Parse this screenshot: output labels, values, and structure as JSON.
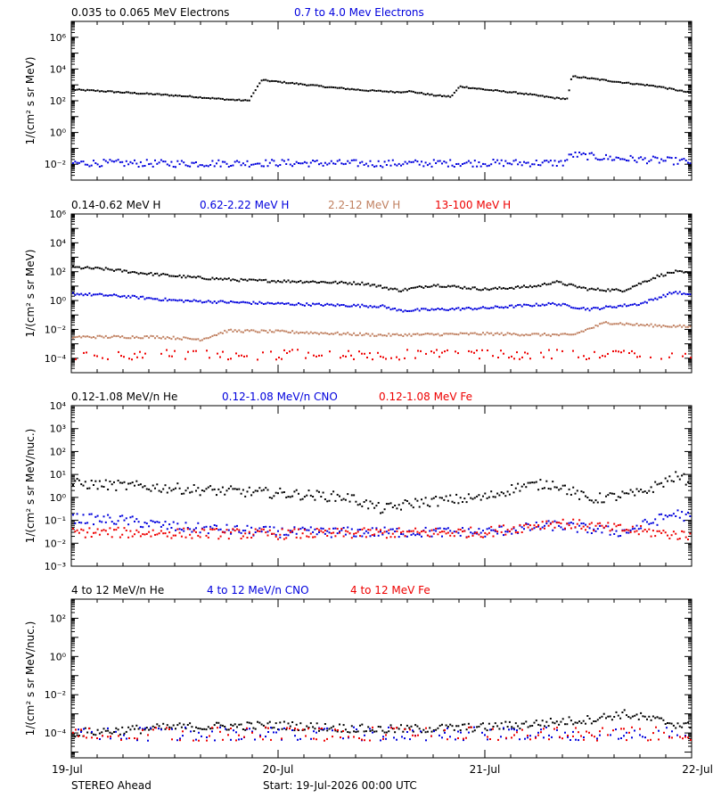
{
  "colors": {
    "black": "#000000",
    "blue": "#0000dd",
    "brown": "#c08060",
    "red": "#ee0000",
    "background": "#ffffff"
  },
  "x_axis": {
    "range": [
      "2026-07-19T00:00",
      "2026-07-22T00:00"
    ],
    "ticks": [
      {
        "date": "2026-07-19T00:00",
        "label": "19-Jul"
      },
      {
        "date": "2026-07-20T00:00",
        "label": "20-Jul"
      },
      {
        "date": "2026-07-21T00:00",
        "label": "21-Jul"
      },
      {
        "date": "2026-07-22T00:00",
        "label": "22-Jul"
      }
    ]
  },
  "footer": {
    "spacecraft": "STEREO Ahead",
    "start": "Start: 19-Jul-2026 00:00 UTC"
  },
  "chart_data": [
    {
      "type": "scatter",
      "title": "",
      "ylabel": "1/(cm² s sr MeV)",
      "yscale": "log",
      "ylim": [
        0.001,
        10000000
      ],
      "yticks": [
        {
          "v": 0.01,
          "label": "10⁻²"
        },
        {
          "v": 1,
          "label": "10⁰"
        },
        {
          "v": 100,
          "label": "10²"
        },
        {
          "v": 10000,
          "label": "10⁴"
        },
        {
          "v": 1000000,
          "label": "10⁶"
        }
      ],
      "series": [
        {
          "name": "0.035 to 0.065 MeV Electrons",
          "color": "#000000",
          "points": [
            [
              "2026-07-19T00:00",
              500
            ],
            [
              "2026-07-19T03:00",
              420
            ],
            [
              "2026-07-19T06:00",
              330
            ],
            [
              "2026-07-19T10:00",
              250
            ],
            [
              "2026-07-19T14:00",
              180
            ],
            [
              "2026-07-19T18:00",
              120
            ],
            [
              "2026-07-19T20:30",
              100
            ],
            [
              "2026-07-19T22:00",
              2000
            ],
            [
              "2026-07-20T02:00",
              1200
            ],
            [
              "2026-07-20T06:00",
              700
            ],
            [
              "2026-07-20T10:00",
              450
            ],
            [
              "2026-07-20T14:00",
              350
            ],
            [
              "2026-07-20T15:00",
              400
            ],
            [
              "2026-07-20T18:00",
              220
            ],
            [
              "2026-07-20T20:00",
              180
            ],
            [
              "2026-07-20T21:00",
              800
            ],
            [
              "2026-07-21T00:00",
              500
            ],
            [
              "2026-07-21T04:00",
              300
            ],
            [
              "2026-07-21T08:00",
              150
            ],
            [
              "2026-07-21T09:30",
              130
            ],
            [
              "2026-07-21T10:00",
              3500
            ],
            [
              "2026-07-21T12:00",
              2600
            ],
            [
              "2026-07-21T16:00",
              1400
            ],
            [
              "2026-07-21T20:00",
              800
            ],
            [
              "2026-07-22T00:00",
              300
            ]
          ]
        },
        {
          "name": "0.7 to 4.0 Mev Electrons",
          "color": "#0000dd",
          "points": [
            [
              "2026-07-19T00:00",
              0.012
            ],
            [
              "2026-07-19T12:00",
              0.011
            ],
            [
              "2026-07-20T00:00",
              0.012
            ],
            [
              "2026-07-20T12:00",
              0.011
            ],
            [
              "2026-07-21T00:00",
              0.012
            ],
            [
              "2026-07-21T09:00",
              0.012
            ],
            [
              "2026-07-21T10:00",
              0.04
            ],
            [
              "2026-07-21T14:00",
              0.025
            ],
            [
              "2026-07-22T00:00",
              0.014
            ]
          ]
        }
      ]
    },
    {
      "type": "scatter",
      "title": "",
      "ylabel": "1/(cm² s sr MeV)",
      "yscale": "log",
      "ylim": [
        1e-05,
        1000000
      ],
      "yticks": [
        {
          "v": 0.0001,
          "label": "10⁻⁴"
        },
        {
          "v": 0.01,
          "label": "10⁻²"
        },
        {
          "v": 1,
          "label": "10⁰"
        },
        {
          "v": 100,
          "label": "10²"
        },
        {
          "v": 10000,
          "label": "10⁴"
        },
        {
          "v": 1000000,
          "label": "10⁶"
        }
      ],
      "series": [
        {
          "name": "0.14-0.62 MeV H",
          "color": "#000000",
          "points": [
            [
              "2026-07-19T00:00",
              200
            ],
            [
              "2026-07-19T04:00",
              150
            ],
            [
              "2026-07-19T08:00",
              80
            ],
            [
              "2026-07-19T14:00",
              40
            ],
            [
              "2026-07-19T20:00",
              25
            ],
            [
              "2026-07-20T04:00",
              20
            ],
            [
              "2026-07-20T10:00",
              15
            ],
            [
              "2026-07-20T14:00",
              5
            ],
            [
              "2026-07-20T18:00",
              12
            ],
            [
              "2026-07-21T00:00",
              6
            ],
            [
              "2026-07-21T06:00",
              10
            ],
            [
              "2026-07-21T08:00",
              20
            ],
            [
              "2026-07-21T12:00",
              6
            ],
            [
              "2026-07-21T16:00",
              5
            ],
            [
              "2026-07-21T20:00",
              50
            ],
            [
              "2026-07-21T22:00",
              100
            ],
            [
              "2026-07-22T00:00",
              70
            ]
          ]
        },
        {
          "name": "0.62-2.22 MeV H",
          "color": "#0000dd",
          "points": [
            [
              "2026-07-19T00:00",
              3
            ],
            [
              "2026-07-19T06:00",
              2
            ],
            [
              "2026-07-19T12:00",
              1
            ],
            [
              "2026-07-20T00:00",
              0.6
            ],
            [
              "2026-07-20T12:00",
              0.4
            ],
            [
              "2026-07-20T14:00",
              0.2
            ],
            [
              "2026-07-21T00:00",
              0.3
            ],
            [
              "2026-07-21T08:00",
              0.6
            ],
            [
              "2026-07-21T12:00",
              0.25
            ],
            [
              "2026-07-21T18:00",
              0.6
            ],
            [
              "2026-07-21T22:00",
              4
            ],
            [
              "2026-07-22T00:00",
              2
            ]
          ]
        },
        {
          "name": "2.2-12 MeV H",
          "color": "#c08060",
          "points": [
            [
              "2026-07-19T00:00",
              0.003
            ],
            [
              "2026-07-19T10:00",
              0.003
            ],
            [
              "2026-07-19T15:00",
              0.002
            ],
            [
              "2026-07-19T18:00",
              0.008
            ],
            [
              "2026-07-20T00:00",
              0.007
            ],
            [
              "2026-07-20T12:00",
              0.004
            ],
            [
              "2026-07-21T00:00",
              0.005
            ],
            [
              "2026-07-21T10:00",
              0.004
            ],
            [
              "2026-07-21T14:00",
              0.03
            ],
            [
              "2026-07-21T18:00",
              0.02
            ],
            [
              "2026-07-22T00:00",
              0.015
            ]
          ]
        },
        {
          "name": "13-100 MeV H",
          "color": "#ee0000",
          "points": [
            [
              "2026-07-19T00:00",
              0.0002
            ],
            [
              "2026-07-20T00:00",
              0.0002
            ],
            [
              "2026-07-21T00:00",
              0.0002
            ],
            [
              "2026-07-22T00:00",
              0.0002
            ]
          ]
        }
      ]
    },
    {
      "type": "scatter",
      "title": "",
      "ylabel": "1/(cm² s sr MeV/nuc.)",
      "yscale": "log",
      "ylim": [
        0.001,
        10000
      ],
      "yticks": [
        {
          "v": 0.001,
          "label": "10⁻³"
        },
        {
          "v": 0.01,
          "label": "10⁻²"
        },
        {
          "v": 0.1,
          "label": "10⁻¹"
        },
        {
          "v": 1,
          "label": "10⁰"
        },
        {
          "v": 10,
          "label": "10¹"
        },
        {
          "v": 100,
          "label": "10²"
        },
        {
          "v": 1000,
          "label": "10³"
        },
        {
          "v": 10000,
          "label": "10⁴"
        }
      ],
      "series": [
        {
          "name": "0.12-1.08 MeV/n He",
          "color": "#000000",
          "points": [
            [
              "2026-07-19T00:00",
              4
            ],
            [
              "2026-07-19T08:00",
              3
            ],
            [
              "2026-07-19T16:00",
              2
            ],
            [
              "2026-07-20T00:00",
              1.5
            ],
            [
              "2026-07-20T08:00",
              1
            ],
            [
              "2026-07-20T12:00",
              0.3
            ],
            [
              "2026-07-20T16:00",
              0.6
            ],
            [
              "2026-07-21T00:00",
              1
            ],
            [
              "2026-07-21T04:00",
              3
            ],
            [
              "2026-07-21T08:00",
              4
            ],
            [
              "2026-07-21T12:00",
              0.8
            ],
            [
              "2026-07-21T18:00",
              1.5
            ],
            [
              "2026-07-21T22:00",
              8
            ],
            [
              "2026-07-22T00:00",
              5
            ]
          ]
        },
        {
          "name": "0.12-1.08 MeV/n CNO",
          "color": "#0000dd",
          "points": [
            [
              "2026-07-19T00:00",
              0.12
            ],
            [
              "2026-07-19T06:00",
              0.1
            ],
            [
              "2026-07-19T12:00",
              0.05
            ],
            [
              "2026-07-20T00:00",
              0.03
            ],
            [
              "2026-07-21T00:00",
              0.03
            ],
            [
              "2026-07-21T08:00",
              0.06
            ],
            [
              "2026-07-21T16:00",
              0.03
            ],
            [
              "2026-07-21T22:00",
              0.2
            ],
            [
              "2026-07-22T00:00",
              0.12
            ]
          ]
        },
        {
          "name": "0.12-1.08 MeV Fe",
          "color": "#ee0000",
          "points": [
            [
              "2026-07-19T00:00",
              0.03
            ],
            [
              "2026-07-20T00:00",
              0.025
            ],
            [
              "2026-07-21T00:00",
              0.03
            ],
            [
              "2026-07-21T08:00",
              0.08
            ],
            [
              "2026-07-22T00:00",
              0.02
            ]
          ]
        }
      ]
    },
    {
      "type": "scatter",
      "title": "",
      "ylabel": "1/(cm² s sr MeV/nuc.)",
      "yscale": "log",
      "ylim": [
        5e-06,
        1000
      ],
      "yticks": [
        {
          "v": 0.0001,
          "label": "10⁻⁴"
        },
        {
          "v": 0.01,
          "label": "10⁻²"
        },
        {
          "v": 1,
          "label": "10⁰"
        },
        {
          "v": 100,
          "label": "10²"
        }
      ],
      "series": [
        {
          "name": "4 to 12 MeV/n He",
          "color": "#000000",
          "points": [
            [
              "2026-07-19T00:00",
              0.0001
            ],
            [
              "2026-07-19T12:00",
              0.0002
            ],
            [
              "2026-07-20T00:00",
              0.00025
            ],
            [
              "2026-07-20T12:00",
              0.00015
            ],
            [
              "2026-07-21T00:00",
              0.0002
            ],
            [
              "2026-07-21T12:00",
              0.0005
            ],
            [
              "2026-07-21T16:00",
              0.001
            ],
            [
              "2026-07-21T22:00",
              0.0003
            ],
            [
              "2026-07-22T00:00",
              0.0002
            ]
          ]
        },
        {
          "name": "4 to 12 MeV/n CNO",
          "color": "#0000dd",
          "points": [
            [
              "2026-07-19T00:00",
              0.0001
            ],
            [
              "2026-07-22T00:00",
              0.0001
            ]
          ]
        },
        {
          "name": "4 to 12 MeV Fe",
          "color": "#ee0000",
          "points": [
            [
              "2026-07-19T00:00",
              0.0001
            ],
            [
              "2026-07-22T00:00",
              0.0001
            ]
          ]
        }
      ]
    }
  ]
}
